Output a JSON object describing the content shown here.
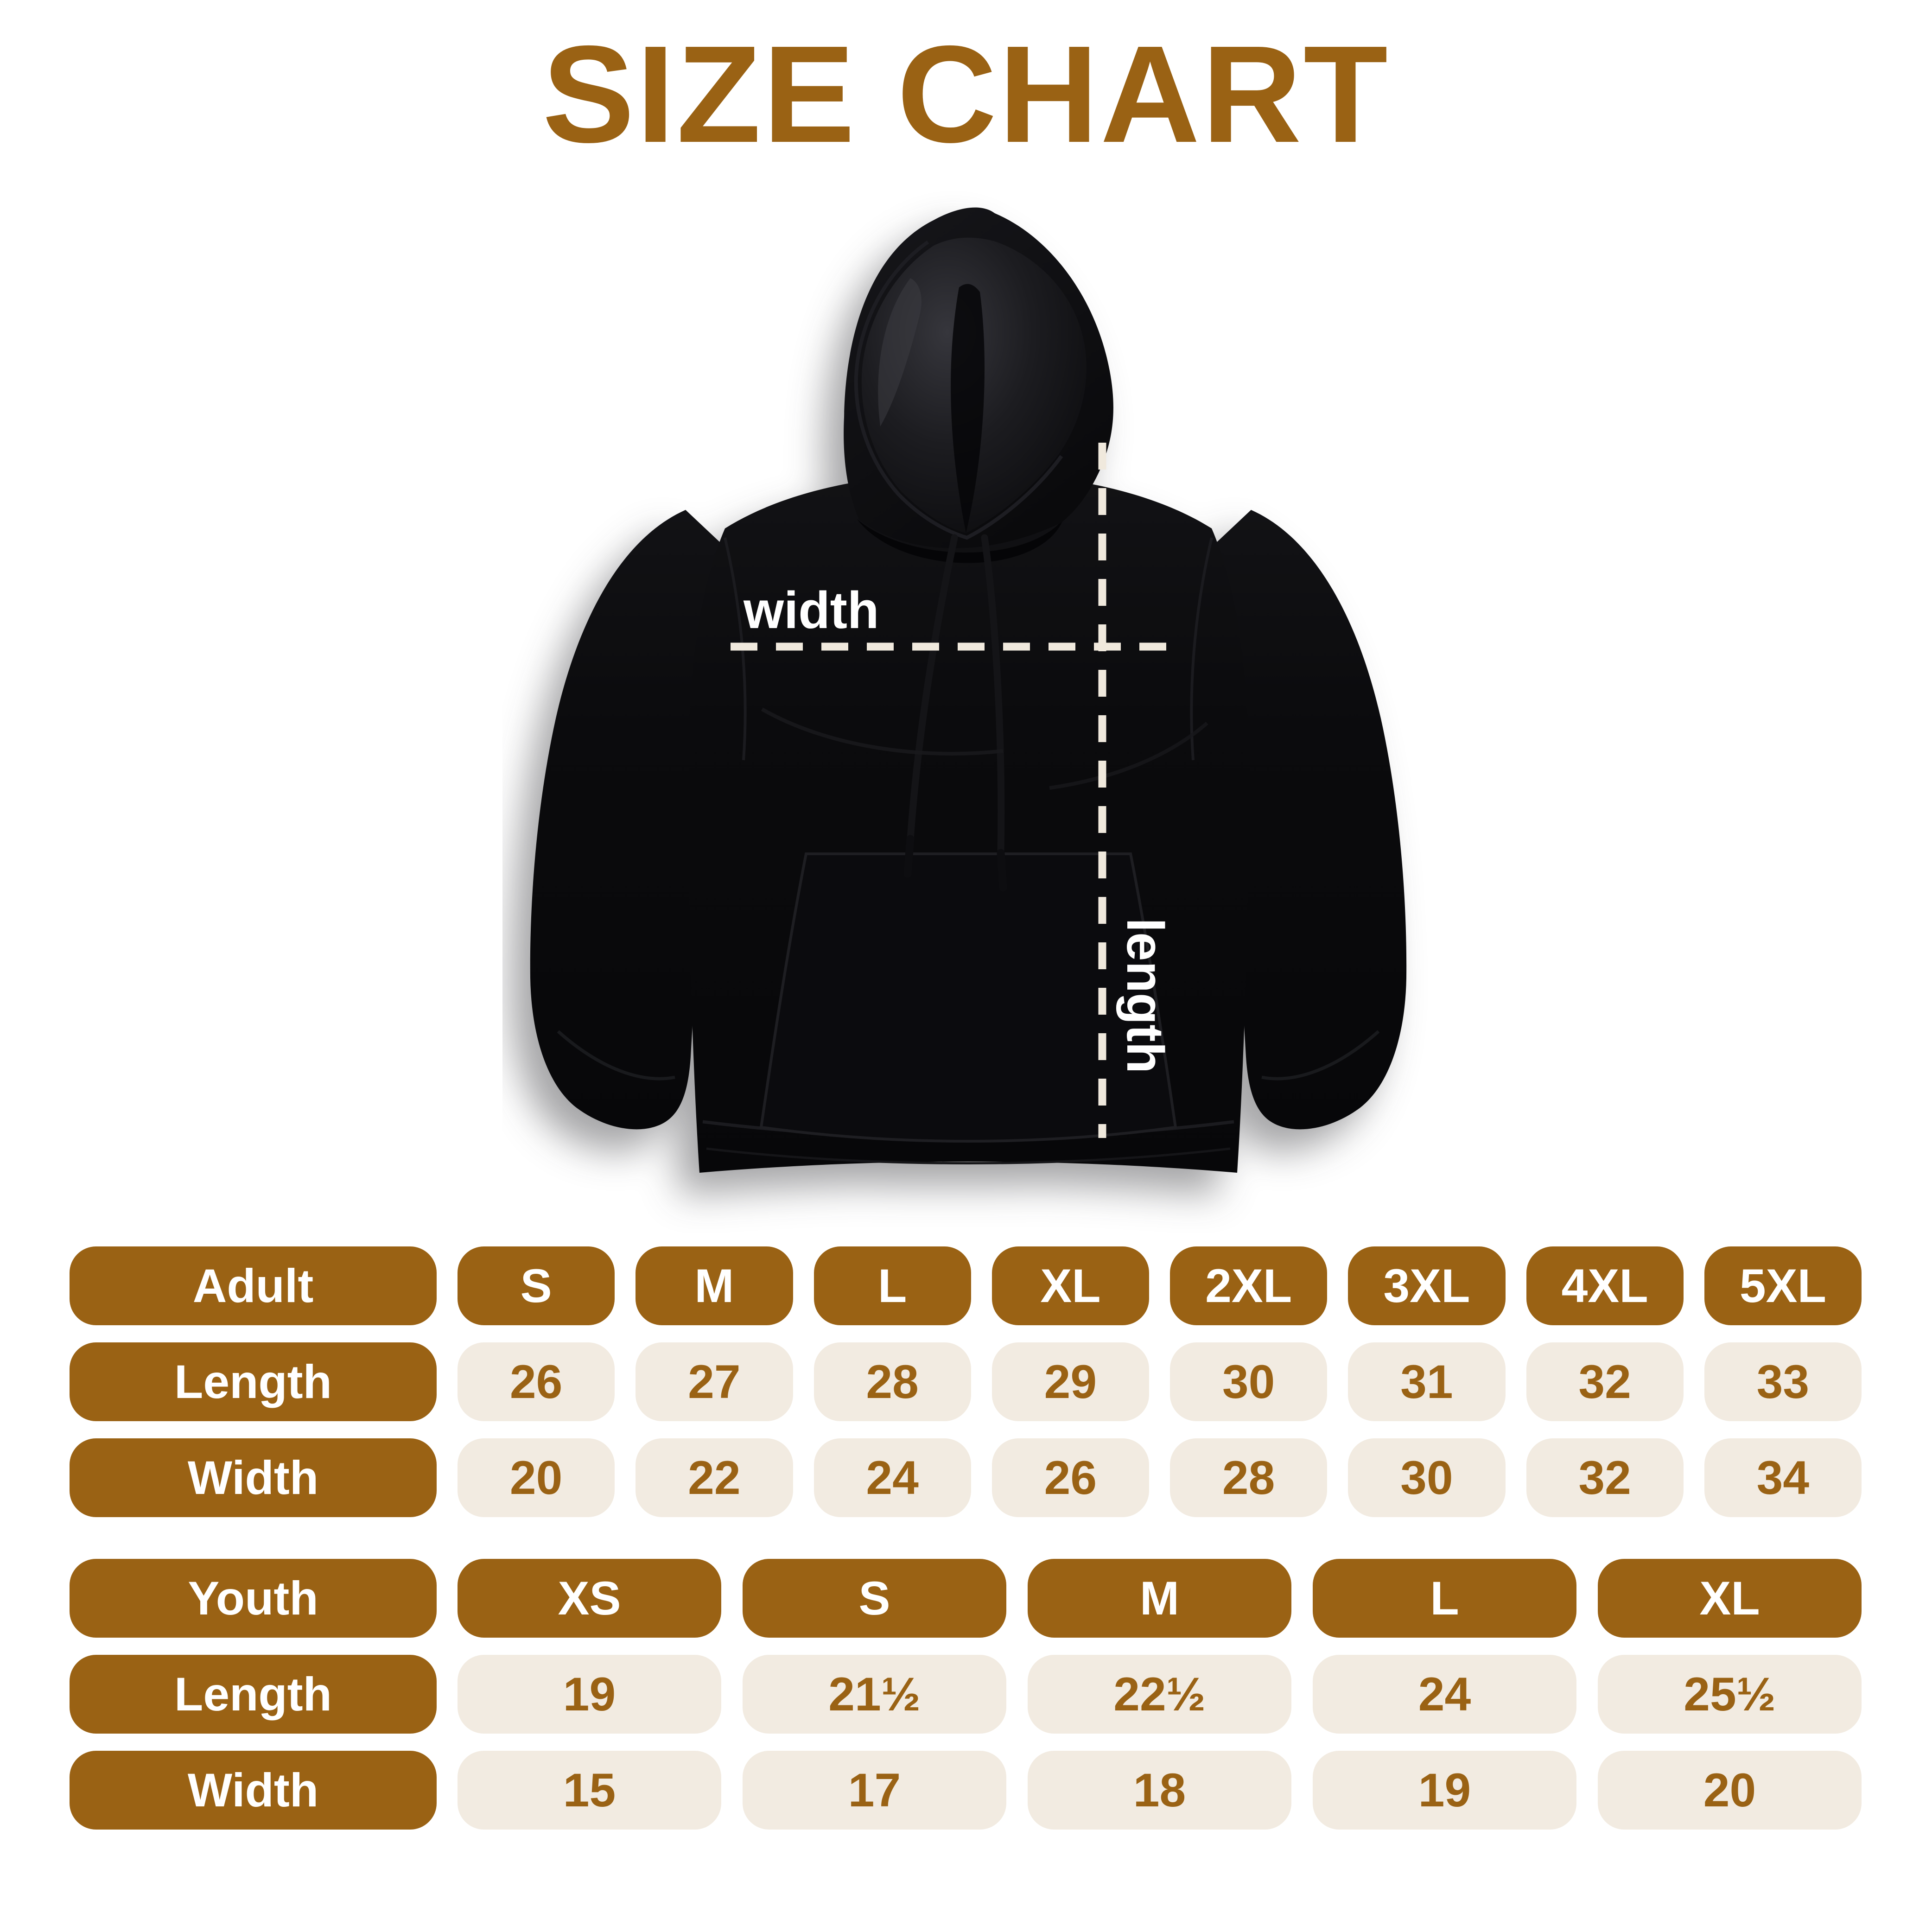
{
  "title": "SIZE CHART",
  "hoodie": {
    "garment": "black pullover hoodie",
    "width_label": "width",
    "length_label": "length"
  },
  "adult": {
    "header_label": "Adult",
    "sizes": [
      "S",
      "M",
      "L",
      "XL",
      "2XL",
      "3XL",
      "4XL",
      "5XL"
    ],
    "length_label": "Length",
    "length_values": [
      "26",
      "27",
      "28",
      "29",
      "30",
      "31",
      "32",
      "33"
    ],
    "width_label": "Width",
    "width_values": [
      "20",
      "22",
      "24",
      "26",
      "28",
      "30",
      "32",
      "34"
    ]
  },
  "youth": {
    "header_label": "Youth",
    "sizes": [
      "XS",
      "S",
      "M",
      "L",
      "XL"
    ],
    "length_label": "Length",
    "length_values": [
      "19",
      "21½",
      "22½",
      "24",
      "25½"
    ],
    "width_label": "Width",
    "width_values": [
      "15",
      "17",
      "18",
      "19",
      "20"
    ]
  },
  "colors": {
    "accent_brown": "#9a6214",
    "cell_beige": "#f2ebe1",
    "dash_cream": "#f0e9dd",
    "hoodie_black": "#0b0b0d",
    "label_white": "#ffffff",
    "background": "#ffffff"
  },
  "chart_data": [
    {
      "type": "table",
      "title": "Adult",
      "columns": [
        "Adult",
        "S",
        "M",
        "L",
        "XL",
        "2XL",
        "3XL",
        "4XL",
        "5XL"
      ],
      "rows": [
        [
          "Length",
          26,
          27,
          28,
          29,
          30,
          31,
          32,
          33
        ],
        [
          "Width",
          20,
          22,
          24,
          26,
          28,
          30,
          32,
          34
        ]
      ]
    },
    {
      "type": "table",
      "title": "Youth",
      "columns": [
        "Youth",
        "XS",
        "S",
        "M",
        "L",
        "XL"
      ],
      "rows": [
        [
          "Length",
          19,
          21.5,
          22.5,
          24,
          25.5
        ],
        [
          "Width",
          15,
          17,
          18,
          19,
          20
        ]
      ]
    }
  ]
}
